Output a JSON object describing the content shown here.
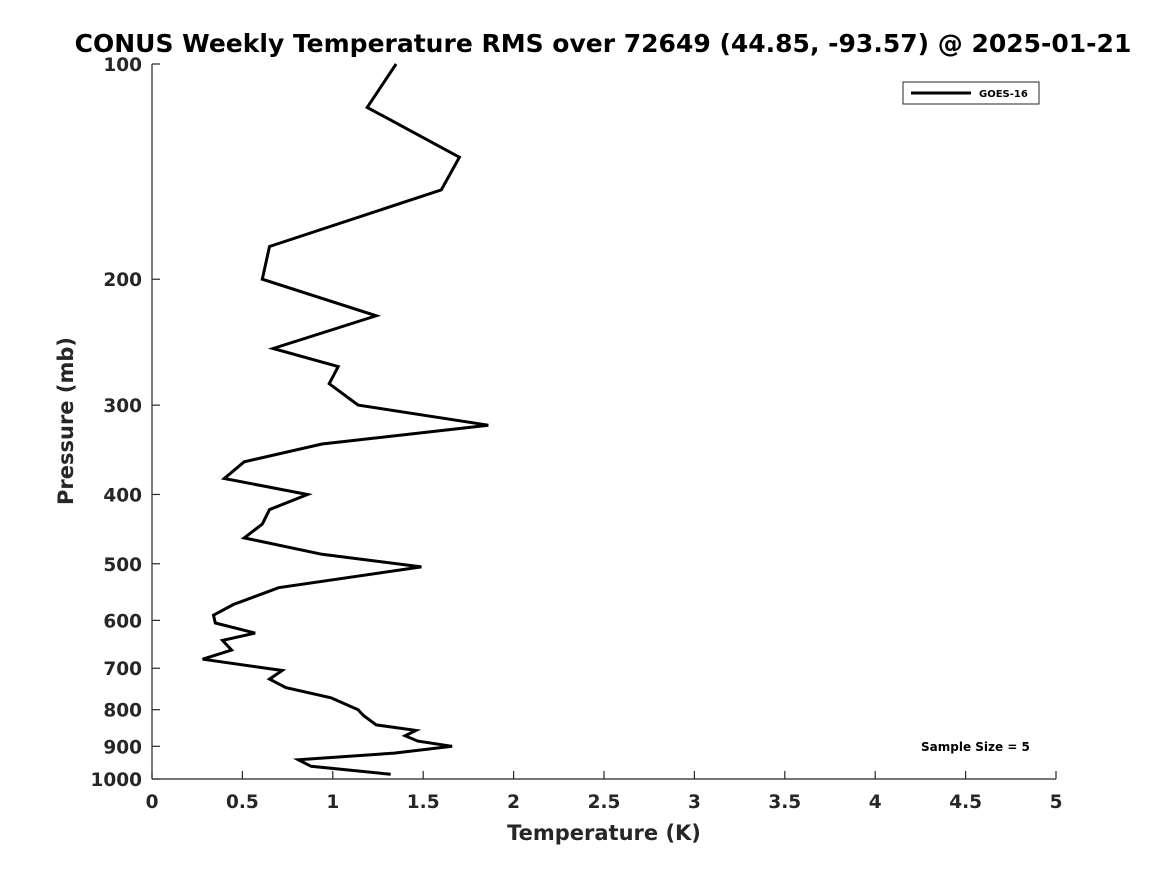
{
  "chart_data": {
    "type": "line",
    "title": "CONUS Weekly Temperature RMS over 72649 (44.85, -93.57) @ 2025-01-21",
    "xlabel": "Temperature (K)",
    "ylabel": "Pressure (mb)",
    "xlim": [
      0,
      5
    ],
    "ylim": [
      1000,
      100
    ],
    "yscale": "log",
    "xticks": [
      0,
      0.5,
      1,
      1.5,
      2,
      2.5,
      3,
      3.5,
      4,
      4.5,
      5
    ],
    "xtick_labels": [
      "0",
      "0.5",
      "1",
      "1.5",
      "2",
      "2.5",
      "3",
      "3.5",
      "4",
      "4.5",
      "5"
    ],
    "yticks": [
      100,
      200,
      300,
      400,
      500,
      600,
      700,
      800,
      900,
      1000
    ],
    "ytick_labels": [
      "100",
      "200",
      "300",
      "400",
      "500",
      "600",
      "700",
      "800",
      "900",
      "1000"
    ],
    "grid": false,
    "legend_position": "top-right",
    "series": [
      {
        "name": "GOES-16",
        "color": "#000000",
        "points": [
          [
            1.35,
            100
          ],
          [
            1.19,
            115
          ],
          [
            1.7,
            135
          ],
          [
            1.6,
            150
          ],
          [
            0.65,
            180
          ],
          [
            0.61,
            200
          ],
          [
            1.24,
            225
          ],
          [
            0.67,
            250
          ],
          [
            1.03,
            265
          ],
          [
            0.98,
            280
          ],
          [
            1.14,
            300
          ],
          [
            1.86,
            320
          ],
          [
            0.94,
            340
          ],
          [
            0.51,
            360
          ],
          [
            0.4,
            380
          ],
          [
            0.86,
            400
          ],
          [
            0.65,
            420
          ],
          [
            0.61,
            440
          ],
          [
            0.51,
            460
          ],
          [
            0.94,
            485
          ],
          [
            1.49,
            505
          ],
          [
            0.7,
            540
          ],
          [
            0.45,
            570
          ],
          [
            0.34,
            590
          ],
          [
            0.35,
            605
          ],
          [
            0.57,
            625
          ],
          [
            0.39,
            640
          ],
          [
            0.44,
            660
          ],
          [
            0.28,
            680
          ],
          [
            0.72,
            705
          ],
          [
            0.65,
            725
          ],
          [
            0.74,
            745
          ],
          [
            0.99,
            770
          ],
          [
            1.14,
            800
          ],
          [
            1.17,
            815
          ],
          [
            1.24,
            840
          ],
          [
            1.46,
            855
          ],
          [
            1.4,
            870
          ],
          [
            1.47,
            885
          ],
          [
            1.66,
            900
          ],
          [
            1.34,
            920
          ],
          [
            0.81,
            940
          ],
          [
            0.88,
            960
          ],
          [
            1.32,
            985
          ]
        ]
      }
    ],
    "annotations": [
      "Sample Size = 5"
    ]
  }
}
